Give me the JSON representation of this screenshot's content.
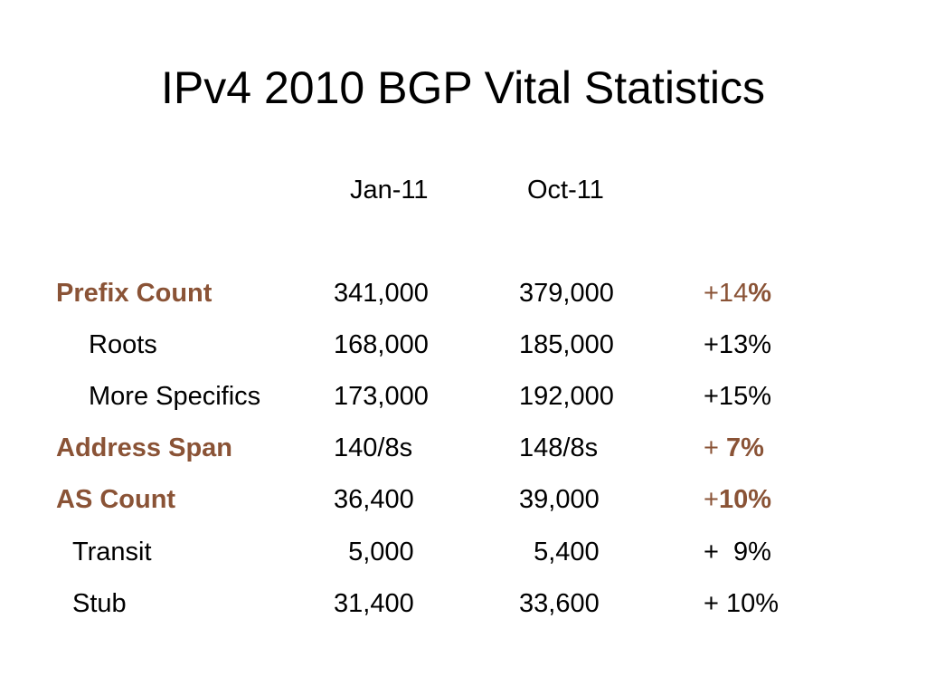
{
  "title": "IPv4 2010 BGP Vital Statistics",
  "headers": {
    "col1": "Jan-11",
    "col2": "Oct-11"
  },
  "rows": [
    {
      "label": "Prefix Count",
      "jan": "341,000",
      "oct": "379,000",
      "change_a": "+14",
      "change_b": "%"
    },
    {
      "label": "Roots",
      "jan": "168,000",
      "oct": "185,000",
      "change": "+13%"
    },
    {
      "label": "More Specifics",
      "jan": "173,000",
      "oct": "192,000",
      "change": "+15%"
    },
    {
      "label": "Address Span",
      "jan": "140/8s",
      "oct": "148/8s",
      "change_a": "+ ",
      "change_b": "7%"
    },
    {
      "label": "AS Count",
      "jan": "36,400",
      "oct": "39,000",
      "change_a": "+",
      "change_b": "10%"
    },
    {
      "label": "Transit",
      "jan": "  5,000",
      "oct": "  5,400",
      "change": "+  9%"
    },
    {
      "label": "Stub",
      "jan": "31,400",
      "oct": "33,600",
      "change": "+ 10%"
    }
  ],
  "colors": {
    "accent": "#8a5336",
    "text": "#000000",
    "background": "#ffffff"
  }
}
